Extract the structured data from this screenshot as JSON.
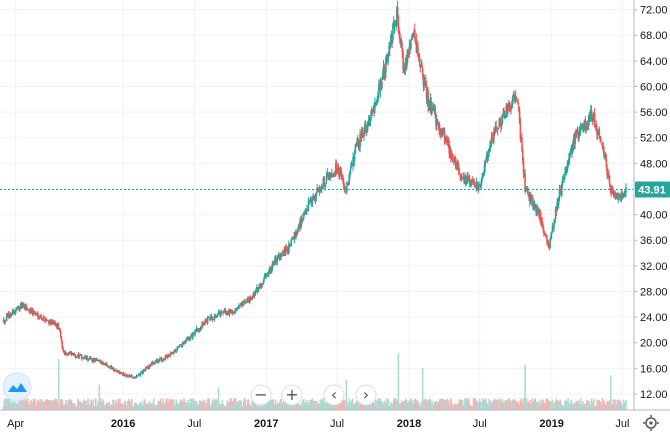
{
  "chart_data": {
    "type": "candlestick",
    "title": "",
    "xlabel": "",
    "ylabel": "",
    "ylim": [
      9.5,
      73.5
    ],
    "y_ticks": [
      "72.00",
      "68.00",
      "64.00",
      "60.00",
      "56.00",
      "52.00",
      "48.00",
      "44.00",
      "40.00",
      "36.00",
      "32.00",
      "28.00",
      "24.00",
      "20.00",
      "16.00",
      "12.00"
    ],
    "x_ticks": [
      "Apr",
      "2016",
      "Jul",
      "2017",
      "Jul",
      "2018",
      "Jul",
      "2019",
      "Jul"
    ],
    "last_price": 43.91,
    "grid": true,
    "up_color": "#26a69a",
    "down_color": "#ef5350",
    "last_price_color": "#26a69a",
    "price_path": [
      [
        "2015-03-01",
        23.5
      ],
      [
        "2015-04-15",
        25.8
      ],
      [
        "2015-06-01",
        24.2
      ],
      [
        "2015-07-20",
        22.5
      ],
      [
        "2015-08-01",
        18.5
      ],
      [
        "2015-09-15",
        17.8
      ],
      [
        "2015-11-15",
        16.8
      ],
      [
        "2016-01-01",
        15.0
      ],
      [
        "2016-02-01",
        14.5
      ],
      [
        "2016-03-15",
        16.8
      ],
      [
        "2016-05-01",
        18.0
      ],
      [
        "2016-06-15",
        20.5
      ],
      [
        "2016-08-01",
        23.5
      ],
      [
        "2016-09-01",
        24.5
      ],
      [
        "2016-10-15",
        25.0
      ],
      [
        "2016-12-01",
        27.5
      ],
      [
        "2017-01-15",
        32.0
      ],
      [
        "2017-03-01",
        35.0
      ],
      [
        "2017-04-15",
        41.0
      ],
      [
        "2017-06-01",
        45.5
      ],
      [
        "2017-07-01",
        47.5
      ],
      [
        "2017-07-25",
        43.5
      ],
      [
        "2017-08-15",
        50.0
      ],
      [
        "2017-10-01",
        56.0
      ],
      [
        "2017-11-01",
        63.0
      ],
      [
        "2017-12-01",
        71.5
      ],
      [
        "2017-12-20",
        62.0
      ],
      [
        "2018-01-10",
        69.0
      ],
      [
        "2018-02-01",
        63.0
      ],
      [
        "2018-02-15",
        58.5
      ],
      [
        "2018-04-01",
        52.0
      ],
      [
        "2018-05-15",
        46.0
      ],
      [
        "2018-07-01",
        44.0
      ],
      [
        "2018-08-01",
        52.0
      ],
      [
        "2018-09-15",
        57.0
      ],
      [
        "2018-10-05",
        58.5
      ],
      [
        "2018-10-25",
        44.0
      ],
      [
        "2018-12-01",
        40.0
      ],
      [
        "2018-12-25",
        35.0
      ],
      [
        "2019-01-20",
        43.0
      ],
      [
        "2019-03-01",
        52.0
      ],
      [
        "2019-04-15",
        55.5
      ],
      [
        "2019-05-10",
        51.0
      ],
      [
        "2019-06-01",
        44.0
      ],
      [
        "2019-06-20",
        42.5
      ],
      [
        "2019-07-10",
        43.9
      ]
    ],
    "volume_spikes": [
      [
        "2015-07-20",
        0.85
      ],
      [
        "2015-11-01",
        0.42
      ],
      [
        "2016-09-01",
        0.38
      ],
      [
        "2017-02-15",
        0.35
      ],
      [
        "2017-07-25",
        0.5
      ],
      [
        "2017-12-05",
        0.95
      ],
      [
        "2018-02-05",
        0.7
      ],
      [
        "2018-10-25",
        0.75
      ],
      [
        "2019-06-01",
        0.58
      ]
    ]
  }
}
